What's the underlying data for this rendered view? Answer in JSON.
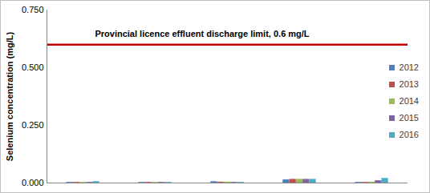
{
  "chart_data": {
    "type": "bar",
    "y_label": "Selenium concentration (mg/L)",
    "categories": [
      null,
      null,
      null,
      null,
      null
    ],
    "series": [
      {
        "name": "2012",
        "color": "#4f81bd",
        "values": [
          0.003,
          0.003,
          0.006,
          0.014,
          0.003
        ]
      },
      {
        "name": "2013",
        "color": "#c0504d",
        "values": [
          0.003,
          0.003,
          0.004,
          0.016,
          0.003
        ]
      },
      {
        "name": "2014",
        "color": "#9bbb59",
        "values": [
          0.003,
          0.003,
          0.004,
          0.016,
          0.004
        ]
      },
      {
        "name": "2015",
        "color": "#8064a2",
        "values": [
          0.003,
          0.003,
          0.003,
          0.016,
          0.01
        ]
      },
      {
        "name": "2016",
        "color": "#4bacc6",
        "values": [
          0.006,
          0.003,
          0.003,
          0.016,
          0.02
        ]
      }
    ],
    "reference_line": {
      "value": 0.6,
      "label": "Provincial licence effluent discharge limit, 0.6 mg/L",
      "color": "#c00000"
    },
    "ylim": [
      0,
      0.75
    ],
    "yticks": [
      {
        "value": 0,
        "label": "0.000"
      },
      {
        "value": 0.25,
        "label": "0.250"
      },
      {
        "value": 0.5,
        "label": "0.500"
      },
      {
        "value": 0.75,
        "label": "0.750"
      }
    ],
    "grid": false,
    "legend": "right",
    "tick_labels": "y"
  }
}
